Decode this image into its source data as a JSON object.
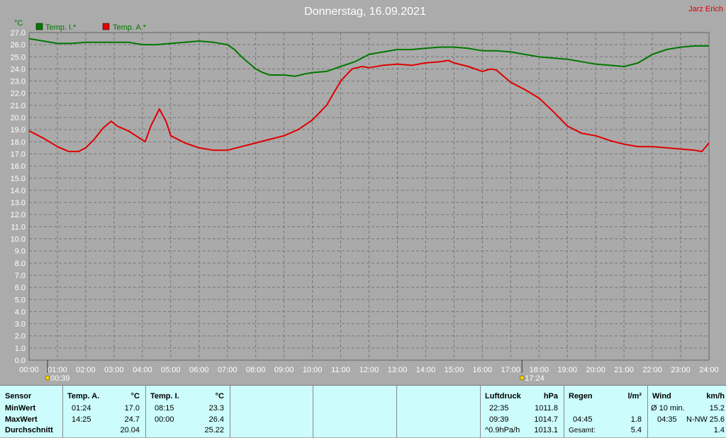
{
  "chart_data": {
    "type": "line",
    "title": "Donnerstag, 16.09.2021",
    "corner_label": "Jarz Erich",
    "ylabel": "°C",
    "ylim": [
      0,
      27
    ],
    "xlim": [
      0,
      24
    ],
    "grid": true,
    "legend": "top-left",
    "y_ticks": [
      "0.0",
      "1.0",
      "2.0",
      "3.0",
      "4.0",
      "5.0",
      "6.0",
      "7.0",
      "8.0",
      "9.0",
      "10.0",
      "11.0",
      "12.0",
      "13.0",
      "14.0",
      "15.0",
      "16.0",
      "17.0",
      "18.0",
      "19.0",
      "20.0",
      "21.0",
      "22.0",
      "23.0",
      "24.0",
      "25.0",
      "26.0",
      "27.0"
    ],
    "x_ticks": [
      "00:00",
      "01:00",
      "02:00",
      "03:00",
      "04:00",
      "05:00",
      "06:00",
      "07:00",
      "08:00",
      "09:00",
      "10:00",
      "11:00",
      "12:00",
      "13:00",
      "14:00",
      "15:00",
      "16:00",
      "17:00",
      "18:00",
      "19:00",
      "20:00",
      "21:00",
      "22:00",
      "23:00",
      "24:00"
    ],
    "sun_markers": [
      {
        "label": "00:39",
        "x": 0.65
      },
      {
        "label": "17:24",
        "x": 17.4
      }
    ],
    "series": [
      {
        "name": "Temp. I.*",
        "color": "#007800",
        "x": [
          0,
          0.5,
          1,
          1.5,
          2,
          2.5,
          3,
          3.5,
          4,
          4.5,
          5,
          5.5,
          6,
          6.5,
          7,
          7.25,
          7.5,
          7.75,
          8,
          8.25,
          8.5,
          9,
          9.4,
          9.75,
          10,
          10.5,
          11,
          11.5,
          12,
          12.5,
          13,
          13.5,
          14,
          14.5,
          15,
          15.5,
          16,
          16.5,
          17,
          17.5,
          18,
          18.5,
          19,
          19.5,
          20,
          20.5,
          21,
          21.5,
          22,
          22.5,
          23,
          23.5,
          24
        ],
        "y": [
          26.5,
          26.3,
          26.1,
          26.1,
          26.2,
          26.2,
          26.2,
          26.2,
          26.0,
          26.0,
          26.1,
          26.2,
          26.3,
          26.2,
          26.0,
          25.6,
          25.0,
          24.5,
          24.0,
          23.7,
          23.5,
          23.5,
          23.4,
          23.6,
          23.7,
          23.8,
          24.2,
          24.6,
          25.2,
          25.4,
          25.6,
          25.6,
          25.7,
          25.8,
          25.8,
          25.7,
          25.5,
          25.5,
          25.4,
          25.2,
          25.0,
          24.9,
          24.8,
          24.6,
          24.4,
          24.3,
          24.2,
          24.5,
          25.2,
          25.6,
          25.8,
          25.9,
          25.9
        ]
      },
      {
        "name": "Temp. A.*",
        "color": "#e00000",
        "x": [
          0,
          0.5,
          1,
          1.4,
          1.75,
          2,
          2.3,
          2.6,
          2.9,
          3.1,
          3.5,
          3.9,
          4.1,
          4.3,
          4.6,
          4.85,
          5,
          5.5,
          6,
          6.5,
          7,
          7.5,
          8,
          8.5,
          9,
          9.5,
          10,
          10.5,
          11,
          11.4,
          11.75,
          12,
          12.5,
          13,
          13.5,
          14,
          14.5,
          14.8,
          15,
          15.5,
          16,
          16.3,
          16.5,
          16.75,
          17,
          17.5,
          18,
          18.5,
          19,
          19.5,
          20,
          20.5,
          21,
          21.5,
          22,
          22.5,
          23,
          23.5,
          23.75,
          24
        ],
        "y": [
          18.9,
          18.3,
          17.6,
          17.2,
          17.2,
          17.5,
          18.2,
          19.1,
          19.7,
          19.3,
          18.9,
          18.3,
          18.0,
          19.3,
          20.7,
          19.6,
          18.5,
          17.9,
          17.5,
          17.3,
          17.3,
          17.6,
          17.9,
          18.2,
          18.5,
          19.0,
          19.8,
          21.0,
          23.0,
          24.0,
          24.2,
          24.1,
          24.3,
          24.4,
          24.3,
          24.5,
          24.6,
          24.7,
          24.5,
          24.2,
          23.8,
          24.0,
          23.9,
          23.4,
          22.9,
          22.3,
          21.6,
          20.5,
          19.3,
          18.7,
          18.5,
          18.1,
          17.8,
          17.6,
          17.6,
          17.5,
          17.4,
          17.3,
          17.2,
          17.9
        ]
      }
    ]
  },
  "summary": {
    "sensor": {
      "header": "Sensor",
      "min": "MinWert",
      "max": "MaxWert",
      "avg": "Durchschnitt"
    },
    "temp_a": {
      "header": "Temp. A.",
      "unit": "°C",
      "min_time": "01:24",
      "min_val": "17.0",
      "max_time": "14:25",
      "max_val": "24.7",
      "avg": "20.04"
    },
    "temp_i": {
      "header": "Temp. I.",
      "unit": "°C",
      "min_time": "08:15",
      "min_val": "23.3",
      "max_time": "00:00",
      "max_val": "26.4",
      "avg": "25.22"
    },
    "pressure": {
      "header": "Luftdruck",
      "unit": "hPa",
      "min_time": "22:35",
      "min_val": "1011.8",
      "max_time": "09:39",
      "max_val": "1014.7",
      "trend": "^0.9hPa/h",
      "current": "1013.1"
    },
    "rain": {
      "header": "Regen",
      "unit": "l/m²",
      "time": "04:45",
      "val": "1.8",
      "total_label": "Gesamt:",
      "total": "5.4"
    },
    "wind": {
      "header": "Wind",
      "unit": "km/h",
      "avg_label": "Ø 10 min.",
      "avg_val": "15.2",
      "gust_time": "04:35",
      "gust_dir": "N-NW",
      "gust_val": "25.6",
      "current": "1.4"
    }
  }
}
